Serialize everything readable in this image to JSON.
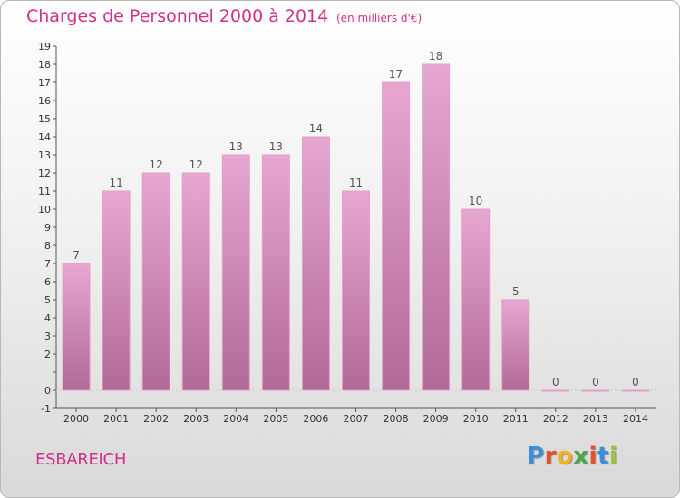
{
  "header": {
    "title": "Charges de Personnel 2000 à 2014",
    "subtitle": "(en milliers d'€)"
  },
  "footer": {
    "commune": "ESBAREICH",
    "logo_text": "Proxiti",
    "logo_colors": [
      "#3a8fd8",
      "#e84e2a",
      "#f2b41e",
      "#4ca64c",
      "#e84e2a",
      "#3a8fd8",
      "#9ac43c"
    ]
  },
  "colors": {
    "bar_top": "#e7a7d0",
    "bar_bottom": "#b06a96",
    "bar_edge": "#e2a0c9",
    "axis": "#555555",
    "title": "#d0308a"
  },
  "chart_data": {
    "type": "bar",
    "title": "Charges de Personnel 2000 à 2014",
    "subtitle": "(en milliers d'€)",
    "xlabel": "",
    "ylabel": "",
    "categories": [
      "2000",
      "2001",
      "2002",
      "2003",
      "2004",
      "2005",
      "2006",
      "2007",
      "2008",
      "2009",
      "2010",
      "2011",
      "2012",
      "2013",
      "2014"
    ],
    "values": [
      7,
      11,
      12,
      12,
      13,
      13,
      14,
      11,
      17,
      18,
      10,
      5,
      0,
      0,
      0
    ],
    "ylim": [
      -1,
      19
    ],
    "yticks": [
      "-1",
      "0",
      "",
      "2",
      "3",
      "4",
      "5",
      "6",
      "7",
      "8",
      "9",
      "10",
      "11",
      "12",
      "13",
      "14",
      "15",
      "16",
      "17",
      "18",
      "19"
    ],
    "grid": false,
    "legend": "none"
  }
}
